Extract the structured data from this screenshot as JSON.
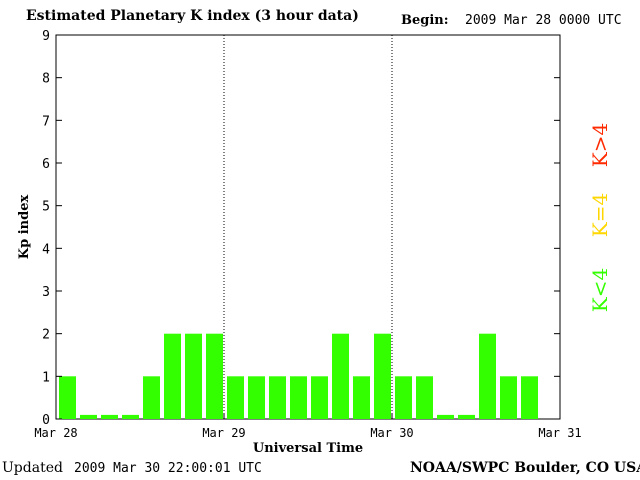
{
  "header": {
    "title": "Estimated Planetary K index (3 hour data)",
    "begin_label": "Begin:",
    "begin_value": "2009 Mar 28 0000 UTC"
  },
  "footer": {
    "updated_label": "Updated",
    "updated_value": "2009 Mar 30 22:00:01 UTC",
    "credit": "NOAA/SWPC Boulder, CO USA"
  },
  "legend": [
    {
      "label": "K>4",
      "color": "#ff2a00"
    },
    {
      "label": "K=4",
      "color": "#ffd700"
    },
    {
      "label": "K<4",
      "color": "#33ff00"
    }
  ],
  "chart_data": {
    "type": "bar",
    "title": "Estimated Planetary K index (3 hour data)",
    "xlabel": "Universal Time",
    "ylabel": "Kp index",
    "ylim": [
      0,
      9
    ],
    "yticks": [
      0,
      1,
      2,
      3,
      4,
      5,
      6,
      7,
      8,
      9
    ],
    "xticks": [
      "Mar 28",
      "Mar 29",
      "Mar 30",
      "Mar 31"
    ],
    "day_dividers": [
      "Mar 29",
      "Mar 30"
    ],
    "interval_hours": 3,
    "values": [
      1,
      0.05,
      0.05,
      0.05,
      1,
      2,
      2,
      2,
      1,
      1,
      1,
      1,
      1,
      2,
      1,
      2,
      1,
      1,
      0.05,
      0.05,
      2,
      1,
      1
    ],
    "bar_color": "#33ff00",
    "grid": false
  }
}
